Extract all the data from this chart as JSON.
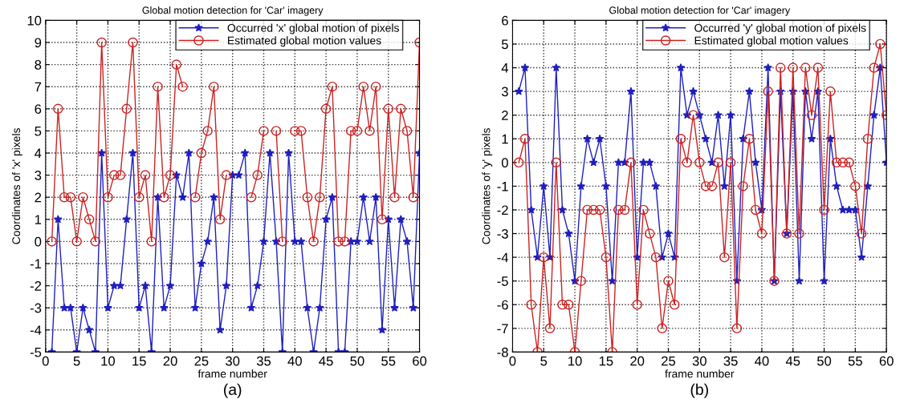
{
  "chart_data": [
    {
      "type": "line",
      "title": "Global motion detection for 'Car' imagery",
      "xlabel": "frame number",
      "ylabel": "Coordinates of 'x' pixels",
      "annotations": [
        "(a)"
      ],
      "x": [
        1,
        2,
        3,
        4,
        5,
        6,
        7,
        8,
        9,
        10,
        11,
        12,
        13,
        14,
        15,
        16,
        17,
        18,
        19,
        20,
        21,
        22,
        23,
        24,
        25,
        26,
        27,
        28,
        29,
        30,
        31,
        32,
        33,
        34,
        35,
        36,
        37,
        38,
        39,
        40,
        41,
        42,
        43,
        44,
        45,
        46,
        47,
        48,
        49,
        50,
        51,
        52,
        53,
        54,
        55,
        56,
        57,
        58,
        59,
        60
      ],
      "xlim": [
        0,
        60
      ],
      "xticks": [
        0,
        5,
        10,
        15,
        20,
        25,
        30,
        35,
        40,
        45,
        50,
        55,
        60
      ],
      "ylim": [
        -5,
        10
      ],
      "yticks": [
        -5,
        -4,
        -3,
        -2,
        -1,
        0,
        1,
        2,
        3,
        4,
        5,
        6,
        7,
        8,
        9,
        10
      ],
      "grid": true,
      "legend": "top right",
      "series": [
        {
          "name": "Occurred 'x' global motion of pixels",
          "color": "#1f1fbf",
          "marker": "star",
          "values": [
            -5,
            1,
            -3,
            -3,
            -5,
            -3,
            -4,
            -5,
            4,
            -3,
            -2,
            -2,
            1,
            4,
            -3,
            -2,
            -5,
            2,
            -3,
            -2,
            3,
            2,
            4,
            -3,
            -1,
            0,
            2,
            -4,
            -2,
            3,
            3,
            4,
            -3,
            -2,
            0,
            4,
            0,
            -5,
            4,
            0,
            0,
            -3,
            -5,
            -3,
            1,
            2,
            -5,
            -5,
            0,
            0,
            2,
            0,
            2,
            -4,
            1,
            -3,
            1,
            0,
            -3,
            4
          ]
        },
        {
          "name": "Estimated global motion values",
          "color": "#cc2222",
          "marker": "circle",
          "values": [
            0,
            6,
            2,
            2,
            0,
            2,
            1,
            0,
            9,
            2,
            3,
            3,
            6,
            9,
            2,
            3,
            0,
            7,
            2,
            3,
            8,
            7,
            null,
            2,
            4,
            5,
            7,
            1,
            3,
            null,
            null,
            null,
            2,
            3,
            5,
            null,
            5,
            0,
            null,
            5,
            5,
            2,
            0,
            2,
            6,
            7,
            0,
            0,
            5,
            5,
            7,
            5,
            7,
            1,
            6,
            2,
            6,
            5,
            2,
            9
          ]
        }
      ]
    },
    {
      "type": "line",
      "title": "Global motion detection for 'Car' imagery",
      "xlabel": "frame number",
      "ylabel": "Coordinates of 'y' pixels",
      "annotations": [
        "(b)"
      ],
      "x": [
        1,
        2,
        3,
        4,
        5,
        6,
        7,
        8,
        9,
        10,
        11,
        12,
        13,
        14,
        15,
        16,
        17,
        18,
        19,
        20,
        21,
        22,
        23,
        24,
        25,
        26,
        27,
        28,
        29,
        30,
        31,
        32,
        33,
        34,
        35,
        36,
        37,
        38,
        39,
        40,
        41,
        42,
        43,
        44,
        45,
        46,
        47,
        48,
        49,
        50,
        51,
        52,
        53,
        54,
        55,
        56,
        57,
        58,
        59,
        60
      ],
      "xlim": [
        0,
        60
      ],
      "xticks": [
        0,
        5,
        10,
        15,
        20,
        25,
        30,
        35,
        40,
        45,
        50,
        55,
        60
      ],
      "ylim": [
        -8,
        6
      ],
      "yticks": [
        -8,
        -7,
        -6,
        -5,
        -4,
        -3,
        -2,
        -1,
        0,
        1,
        2,
        3,
        4,
        5,
        6
      ],
      "grid": true,
      "legend": "top right",
      "series": [
        {
          "name": "Occurred 'y' global motion of pixels",
          "color": "#1f1fbf",
          "marker": "star",
          "values": [
            3,
            4,
            -2,
            -4,
            -1,
            -4,
            4,
            -2,
            -3,
            -5,
            -1,
            1,
            0,
            1,
            -1,
            -5,
            0,
            0,
            3,
            -4,
            0,
            0,
            -1,
            -4,
            -3,
            -4,
            4,
            2,
            3,
            2,
            1,
            0,
            2,
            -1,
            2,
            -5,
            1,
            3,
            0,
            -2,
            4,
            -5,
            3,
            -3,
            3,
            -5,
            3,
            1,
            3,
            -5,
            1,
            -1,
            -2,
            -2,
            -2,
            -4,
            -1,
            2,
            4,
            0
          ]
        },
        {
          "name": "Estimated global motion values",
          "color": "#cc2222",
          "marker": "circle",
          "values": [
            0,
            1,
            -6,
            -8,
            -4,
            -7,
            0,
            -6,
            -6,
            -8,
            -5,
            -2,
            -2,
            -2,
            -4,
            -8,
            -2,
            -2,
            0,
            -6,
            -2,
            -3,
            -4,
            -7,
            -5,
            -6,
            1,
            0,
            2,
            0,
            -1,
            -1,
            0,
            -4,
            0,
            -7,
            -1,
            1,
            -2,
            -3,
            3,
            -5,
            4,
            -3,
            4,
            -3,
            4,
            2,
            4,
            -2,
            3,
            0,
            0,
            0,
            -1,
            -3,
            1,
            4,
            5,
            2
          ]
        }
      ]
    }
  ]
}
